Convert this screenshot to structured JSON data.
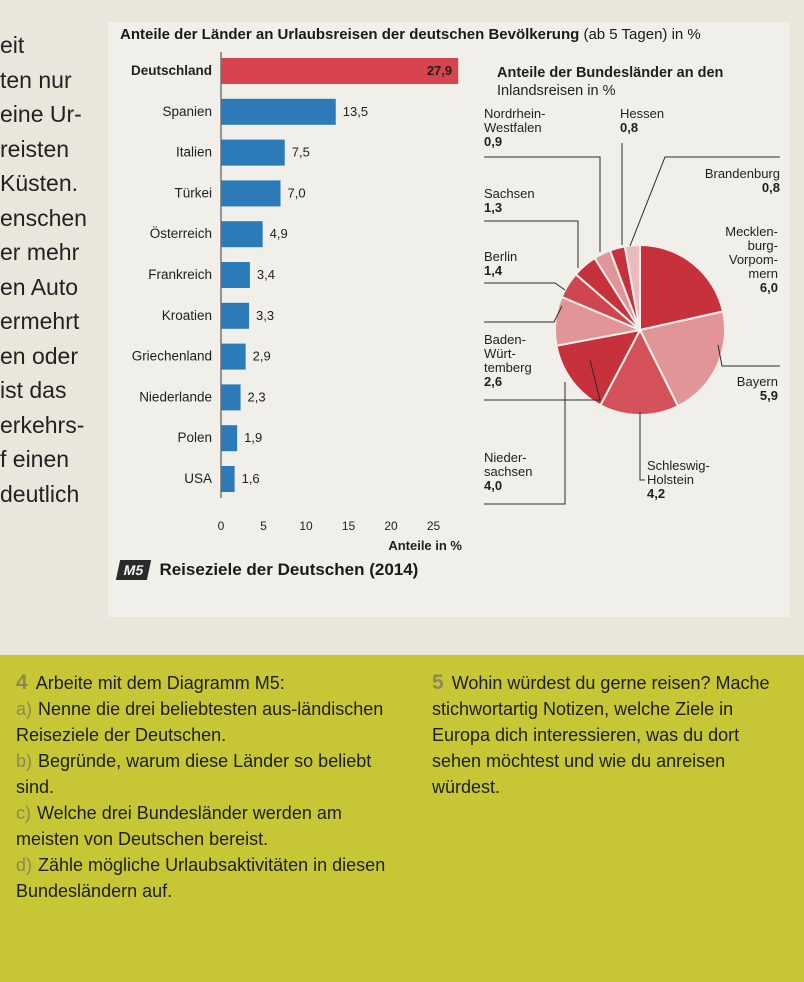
{
  "left_text": [
    "eit",
    "ten nur",
    "eine Ur-",
    "reisten",
    "Küsten.",
    "enschen",
    "er mehr",
    "en Auto",
    "ermehrt",
    "en oder",
    "ist das",
    "erkehrs-",
    "f einen",
    "deutlich"
  ],
  "chart_title": {
    "bold": "Anteile der Länder an Urlaubsreisen der deutschen Bevölkerung",
    "normal": " (ab 5 Tagen) in %"
  },
  "chart_data": [
    {
      "type": "bar",
      "orientation": "horizontal",
      "title": "Anteile der Länder an Urlaubsreisen der deutschen Bevölkerung (ab 5 Tagen) in %",
      "categories": [
        "Deutschland",
        "Spanien",
        "Italien",
        "Türkei",
        "Österreich",
        "Frankreich",
        "Kroatien",
        "Griechenland",
        "Niederlande",
        "Polen",
        "USA"
      ],
      "values": [
        27.9,
        13.5,
        7.5,
        7.0,
        4.9,
        3.4,
        3.3,
        2.9,
        2.3,
        1.9,
        1.6
      ],
      "value_labels": [
        "27,9",
        "13,5",
        "7,5",
        "7,0",
        "4,9",
        "3,4",
        "3,3",
        "2,9",
        "2,3",
        "1,9",
        "1,6"
      ],
      "highlight_color": "#d9434d",
      "bar_color": "#2c7ab8",
      "xlim": [
        0,
        28
      ],
      "xticks": [
        0,
        5,
        10,
        15,
        20,
        25
      ],
      "xlabel": "Anteile in %",
      "grid": false
    },
    {
      "type": "pie",
      "title": "Anteile der Bundesländer an den Inlandsreisen in %",
      "title_lines": [
        "Anteile der Bundesländer an den",
        "Inlandsreisen in %"
      ],
      "slices": [
        {
          "key": "mv",
          "label_lines": [
            "Mecklen-",
            "burg-",
            "Vorpom-",
            "mern"
          ],
          "value": 6.0,
          "value_label": "6,0",
          "color": "#c6313c"
        },
        {
          "key": "by",
          "label_lines": [
            "Bayern"
          ],
          "value": 5.9,
          "value_label": "5,9",
          "color": "#e29599"
        },
        {
          "key": "sh",
          "label_lines": [
            "Schleswig-",
            "Holstein"
          ],
          "value": 4.2,
          "value_label": "4,2",
          "color": "#d5525a"
        },
        {
          "key": "ni",
          "label_lines": [
            "Nieder-",
            "sachsen"
          ],
          "value": 4.0,
          "value_label": "4,0",
          "color": "#c6313c"
        },
        {
          "key": "bw",
          "label_lines": [
            "Baden-",
            "Würt-",
            "temberg"
          ],
          "value": 2.6,
          "value_label": "2,6",
          "color": "#e29599"
        },
        {
          "key": "be",
          "label_lines": [
            "Berlin"
          ],
          "value": 1.4,
          "value_label": "1,4",
          "color": "#cf4650"
        },
        {
          "key": "sn",
          "label_lines": [
            "Sachsen"
          ],
          "value": 1.3,
          "value_label": "1,3",
          "color": "#c6313c"
        },
        {
          "key": "nrw",
          "label_lines": [
            "Nordrhein-",
            "Westfalen"
          ],
          "value": 0.9,
          "value_label": "0,9",
          "color": "#e29599"
        },
        {
          "key": "he",
          "label_lines": [
            "Hessen"
          ],
          "value": 0.8,
          "value_label": "0,8",
          "color": "#c6313c"
        },
        {
          "key": "bb",
          "label_lines": [
            "Brandenburg"
          ],
          "value": 0.8,
          "value_label": "0,8",
          "color": "#ebbcbf"
        }
      ]
    }
  ],
  "caption": {
    "badge": "M5",
    "text": "Reiseziele der Deutschen (2014)"
  },
  "tasks": {
    "t4": {
      "number": "4",
      "title": "Arbeite mit dem Diagramm M5:",
      "items": [
        {
          "letter": "a)",
          "text": "Nenne die drei beliebtesten aus-ländischen Reiseziele der Deutschen."
        },
        {
          "letter": "b)",
          "text": "Begründe, warum diese Länder so beliebt sind."
        },
        {
          "letter": "c)",
          "text": "Welche drei Bundesländer werden am meisten von Deutschen bereist."
        },
        {
          "letter": "d)",
          "text": "Zähle mögliche Urlaubsaktivitäten in diesen Bundesländern auf."
        }
      ]
    },
    "t5": {
      "number": "5",
      "text": "Wohin würdest du gerne reisen? Mache stichwortartig Notizen, welche Ziele in Europa dich interessieren, was du dort sehen möchtest und wie du anreisen würdest."
    }
  }
}
